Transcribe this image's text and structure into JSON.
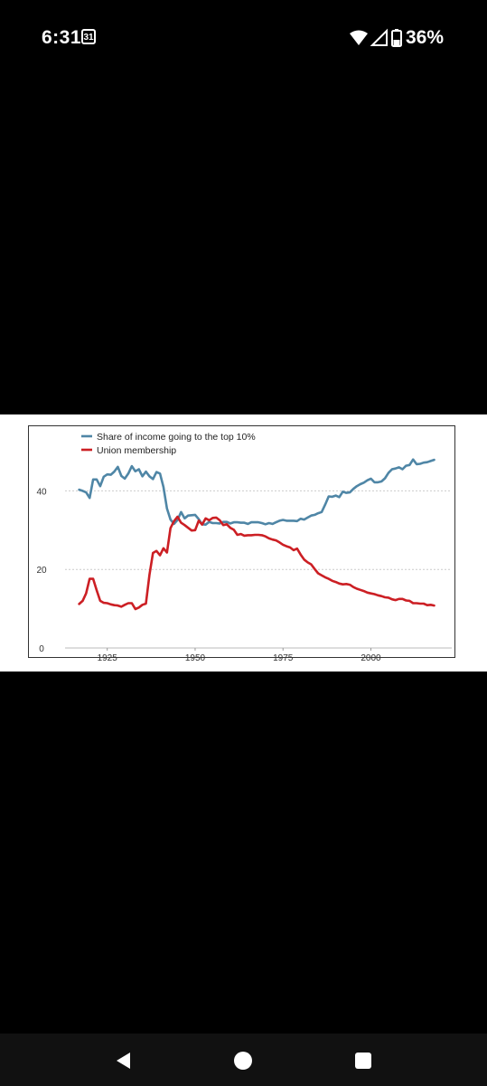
{
  "status_bar": {
    "time": "6:31",
    "calendar_day": "31",
    "battery": "36%"
  },
  "chart_data": {
    "type": "line",
    "legend": [
      "Share of income going to the top 10%",
      "Union membership"
    ],
    "x_ticks": [
      "1925",
      "1950",
      "1975",
      "2000"
    ],
    "y_ticks": [
      "0",
      "20",
      "40"
    ],
    "xlim": [
      1913,
      2023
    ],
    "ylim": [
      0,
      50
    ],
    "grid": "horizontal dotted",
    "legend_placement": "top-left",
    "series": [
      {
        "name": "Share of income going to the top 10%",
        "color": "#4f86a6",
        "points": [
          [
            1917,
            40.3
          ],
          [
            1918,
            40.0
          ],
          [
            1919,
            39.6
          ],
          [
            1920,
            38.2
          ],
          [
            1921,
            42.9
          ],
          [
            1922,
            42.9
          ],
          [
            1923,
            41.2
          ],
          [
            1924,
            43.6
          ],
          [
            1925,
            44.2
          ],
          [
            1926,
            44.1
          ],
          [
            1927,
            44.9
          ],
          [
            1928,
            46.1
          ],
          [
            1929,
            43.8
          ],
          [
            1930,
            43.1
          ],
          [
            1931,
            44.4
          ],
          [
            1932,
            46.3
          ],
          [
            1933,
            45.0
          ],
          [
            1934,
            45.5
          ],
          [
            1935,
            43.7
          ],
          [
            1936,
            44.9
          ],
          [
            1937,
            43.7
          ],
          [
            1938,
            43.0
          ],
          [
            1939,
            44.8
          ],
          [
            1940,
            44.4
          ],
          [
            1941,
            41.0
          ],
          [
            1942,
            35.5
          ],
          [
            1943,
            32.7
          ],
          [
            1944,
            31.6
          ],
          [
            1945,
            32.6
          ],
          [
            1946,
            34.6
          ],
          [
            1947,
            33.0
          ],
          [
            1948,
            33.7
          ],
          [
            1949,
            33.8
          ],
          [
            1950,
            33.9
          ],
          [
            1951,
            32.8
          ],
          [
            1952,
            31.5
          ],
          [
            1953,
            31.4
          ],
          [
            1954,
            32.1
          ],
          [
            1955,
            31.8
          ],
          [
            1956,
            31.8
          ],
          [
            1957,
            31.7
          ],
          [
            1958,
            32.1
          ],
          [
            1959,
            32.1
          ],
          [
            1960,
            31.7
          ],
          [
            1961,
            32.0
          ],
          [
            1962,
            32.0
          ],
          [
            1963,
            31.9
          ],
          [
            1964,
            31.9
          ],
          [
            1965,
            31.6
          ],
          [
            1966,
            32.0
          ],
          [
            1967,
            32.0
          ],
          [
            1968,
            32.0
          ],
          [
            1969,
            31.8
          ],
          [
            1970,
            31.5
          ],
          [
            1971,
            31.8
          ],
          [
            1972,
            31.6
          ],
          [
            1973,
            32.0
          ],
          [
            1974,
            32.4
          ],
          [
            1975,
            32.6
          ],
          [
            1976,
            32.4
          ],
          [
            1977,
            32.4
          ],
          [
            1978,
            32.4
          ],
          [
            1979,
            32.3
          ],
          [
            1980,
            32.9
          ],
          [
            1981,
            32.7
          ],
          [
            1982,
            33.2
          ],
          [
            1983,
            33.7
          ],
          [
            1984,
            33.9
          ],
          [
            1985,
            34.3
          ],
          [
            1986,
            34.6
          ],
          [
            1987,
            36.5
          ],
          [
            1988,
            38.6
          ],
          [
            1989,
            38.5
          ],
          [
            1990,
            38.8
          ],
          [
            1991,
            38.4
          ],
          [
            1992,
            39.8
          ],
          [
            1993,
            39.5
          ],
          [
            1994,
            39.6
          ],
          [
            1995,
            40.5
          ],
          [
            1996,
            41.2
          ],
          [
            1997,
            41.7
          ],
          [
            1998,
            42.1
          ],
          [
            1999,
            42.7
          ],
          [
            2000,
            43.1
          ],
          [
            2001,
            42.2
          ],
          [
            2002,
            42.2
          ],
          [
            2003,
            42.4
          ],
          [
            2004,
            43.2
          ],
          [
            2005,
            44.6
          ],
          [
            2006,
            45.5
          ],
          [
            2007,
            45.7
          ],
          [
            2008,
            46.0
          ],
          [
            2009,
            45.5
          ],
          [
            2010,
            46.4
          ],
          [
            2011,
            46.6
          ],
          [
            2012,
            48.0
          ],
          [
            2013,
            46.8
          ],
          [
            2014,
            46.9
          ],
          [
            2015,
            47.2
          ],
          [
            2016,
            47.3
          ],
          [
            2017,
            47.6
          ],
          [
            2018,
            47.9
          ]
        ]
      },
      {
        "name": "Union membership",
        "color": "#cc1f24",
        "points": [
          [
            1917,
            11.2
          ],
          [
            1918,
            12.0
          ],
          [
            1919,
            13.9
          ],
          [
            1920,
            17.6
          ],
          [
            1921,
            17.6
          ],
          [
            1922,
            14.7
          ],
          [
            1923,
            12.0
          ],
          [
            1924,
            11.5
          ],
          [
            1925,
            11.4
          ],
          [
            1926,
            11.1
          ],
          [
            1927,
            10.9
          ],
          [
            1928,
            10.8
          ],
          [
            1929,
            10.5
          ],
          [
            1930,
            11.0
          ],
          [
            1931,
            11.4
          ],
          [
            1932,
            11.4
          ],
          [
            1933,
            9.9
          ],
          [
            1934,
            10.3
          ],
          [
            1935,
            11.0
          ],
          [
            1936,
            11.3
          ],
          [
            1937,
            18.6
          ],
          [
            1938,
            24.2
          ],
          [
            1939,
            24.7
          ],
          [
            1940,
            23.6
          ],
          [
            1941,
            25.4
          ],
          [
            1942,
            24.3
          ],
          [
            1943,
            30.5
          ],
          [
            1944,
            32.3
          ],
          [
            1945,
            33.4
          ],
          [
            1946,
            31.9
          ],
          [
            1947,
            31.3
          ],
          [
            1948,
            30.6
          ],
          [
            1949,
            29.9
          ],
          [
            1950,
            30.0
          ],
          [
            1951,
            32.4
          ],
          [
            1952,
            31.4
          ],
          [
            1953,
            33.0
          ],
          [
            1954,
            32.5
          ],
          [
            1955,
            33.1
          ],
          [
            1956,
            33.2
          ],
          [
            1957,
            32.5
          ],
          [
            1958,
            31.3
          ],
          [
            1959,
            31.5
          ],
          [
            1960,
            30.6
          ],
          [
            1961,
            30.1
          ],
          [
            1962,
            28.8
          ],
          [
            1963,
            29.0
          ],
          [
            1964,
            28.6
          ],
          [
            1965,
            28.7
          ],
          [
            1966,
            28.7
          ],
          [
            1967,
            28.8
          ],
          [
            1968,
            28.8
          ],
          [
            1969,
            28.7
          ],
          [
            1970,
            28.4
          ],
          [
            1971,
            27.9
          ],
          [
            1972,
            27.6
          ],
          [
            1973,
            27.4
          ],
          [
            1974,
            26.9
          ],
          [
            1975,
            26.3
          ],
          [
            1976,
            25.9
          ],
          [
            1977,
            25.6
          ],
          [
            1978,
            24.9
          ],
          [
            1979,
            25.3
          ],
          [
            1980,
            23.8
          ],
          [
            1981,
            22.5
          ],
          [
            1982,
            21.8
          ],
          [
            1983,
            21.3
          ],
          [
            1984,
            20.1
          ],
          [
            1985,
            19.0
          ],
          [
            1986,
            18.5
          ],
          [
            1987,
            18.0
          ],
          [
            1988,
            17.6
          ],
          [
            1989,
            17.1
          ],
          [
            1990,
            16.8
          ],
          [
            1991,
            16.4
          ],
          [
            1992,
            16.2
          ],
          [
            1993,
            16.3
          ],
          [
            1994,
            16.1
          ],
          [
            1995,
            15.5
          ],
          [
            1996,
            15.1
          ],
          [
            1997,
            14.8
          ],
          [
            1998,
            14.5
          ],
          [
            1999,
            14.1
          ],
          [
            2000,
            13.9
          ],
          [
            2001,
            13.7
          ],
          [
            2002,
            13.4
          ],
          [
            2003,
            13.2
          ],
          [
            2004,
            12.9
          ],
          [
            2005,
            12.8
          ],
          [
            2006,
            12.4
          ],
          [
            2007,
            12.2
          ],
          [
            2008,
            12.5
          ],
          [
            2009,
            12.5
          ],
          [
            2010,
            12.1
          ],
          [
            2011,
            12.0
          ],
          [
            2012,
            11.4
          ],
          [
            2013,
            11.4
          ],
          [
            2014,
            11.3
          ],
          [
            2015,
            11.3
          ],
          [
            2016,
            10.9
          ],
          [
            2017,
            11.0
          ],
          [
            2018,
            10.8
          ]
        ]
      }
    ]
  }
}
